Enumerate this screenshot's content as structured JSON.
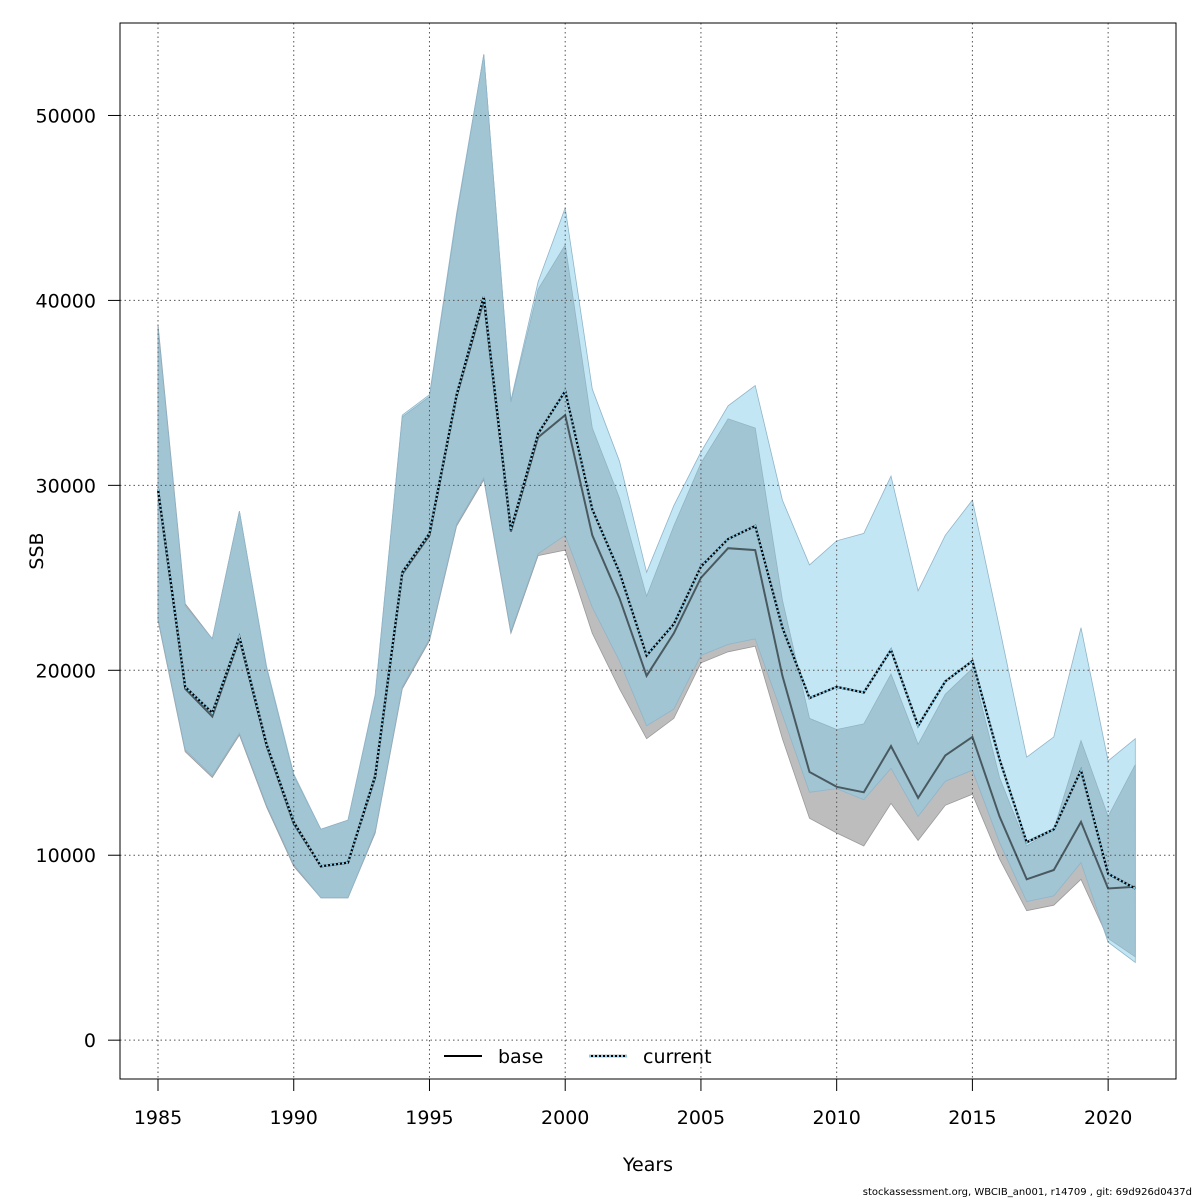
{
  "chart_data": {
    "type": "line",
    "xlabel": "Years",
    "ylabel": "SSB",
    "xlim": [
      1983.6,
      2022.5
    ],
    "ylim": [
      -2100,
      55000
    ],
    "x_ticks": [
      1985,
      1990,
      1995,
      2000,
      2005,
      2010,
      2015,
      2020
    ],
    "y_ticks": [
      0,
      10000,
      20000,
      30000,
      40000,
      50000
    ],
    "grid": true,
    "legend_placement": "bottom",
    "x": [
      1985,
      1986,
      1987,
      1988,
      1989,
      1990,
      1991,
      1992,
      1993,
      1994,
      1995,
      1996,
      1997,
      1998,
      1999,
      2000,
      2001,
      2002,
      2003,
      2004,
      2005,
      2006,
      2007,
      2008,
      2009,
      2010,
      2011,
      2012,
      2013,
      2014,
      2015,
      2016,
      2017,
      2018,
      2019,
      2020,
      2021
    ],
    "series": [
      {
        "name": "base",
        "line_style": "solid",
        "color": "#000000",
        "band_color": "#bdbdbd",
        "values": [
          29700,
          19000,
          17500,
          21700,
          15900,
          11700,
          9400,
          9600,
          14200,
          25200,
          27300,
          34800,
          40000,
          27500,
          32600,
          33800,
          27300,
          23900,
          19700,
          22000,
          25000,
          26600,
          26500,
          19700,
          14500,
          13700,
          13400,
          15900,
          13100,
          15400,
          16400,
          12100,
          8700,
          9200,
          11800,
          8200,
          8300
        ],
        "lower": [
          22700,
          15600,
          14200,
          16500,
          12600,
          9400,
          7700,
          7700,
          11200,
          19000,
          21600,
          27800,
          30300,
          22000,
          26200,
          26500,
          22000,
          19000,
          16300,
          17400,
          20400,
          21000,
          21300,
          16300,
          12000,
          11200,
          10500,
          12800,
          10800,
          12700,
          13300,
          9800,
          7000,
          7300,
          8700,
          5500,
          4500
        ],
        "upper": [
          38700,
          23600,
          21700,
          28600,
          20100,
          14300,
          11400,
          11900,
          18600,
          33700,
          34800,
          44500,
          53300,
          34500,
          40600,
          43000,
          33100,
          29300,
          24000,
          27800,
          31200,
          33600,
          33100,
          23800,
          17400,
          16800,
          17100,
          19800,
          16000,
          18700,
          20100,
          14200,
          10500,
          11400,
          16200,
          12100,
          14900
        ]
      },
      {
        "name": "current",
        "line_style": "dotted",
        "color": "#1f4e8c",
        "band_color": "#87ceeb",
        "values": [
          29800,
          19100,
          17700,
          21800,
          16000,
          11800,
          9400,
          9600,
          14300,
          25300,
          27400,
          34900,
          40200,
          27600,
          32800,
          35100,
          28700,
          25300,
          20800,
          22500,
          25600,
          27100,
          27800,
          22300,
          18500,
          19100,
          18800,
          21100,
          17000,
          19400,
          20500,
          15200,
          10700,
          11400,
          14600,
          9000,
          8200
        ],
        "lower": [
          22800,
          15700,
          14300,
          16600,
          12700,
          9500,
          7700,
          7700,
          11300,
          19100,
          21700,
          27900,
          30400,
          22100,
          26300,
          27300,
          23400,
          20500,
          17000,
          17900,
          20800,
          21400,
          21700,
          17600,
          13400,
          13600,
          13000,
          14700,
          12100,
          14000,
          14600,
          10700,
          7500,
          7800,
          9600,
          5300,
          4200
        ],
        "upper": [
          38500,
          23500,
          21700,
          28600,
          20200,
          14400,
          11400,
          11900,
          18700,
          33800,
          34900,
          44700,
          53300,
          34600,
          41000,
          45000,
          35200,
          31300,
          25300,
          28900,
          31800,
          34300,
          35400,
          29200,
          25700,
          27000,
          27400,
          30500,
          24300,
          27300,
          29200,
          22300,
          15300,
          16400,
          22300,
          15100,
          16300
        ]
      }
    ]
  },
  "footer_text": "stockassessment.org, WBCIB_an001, r14709 , git: 69d926d0437d"
}
